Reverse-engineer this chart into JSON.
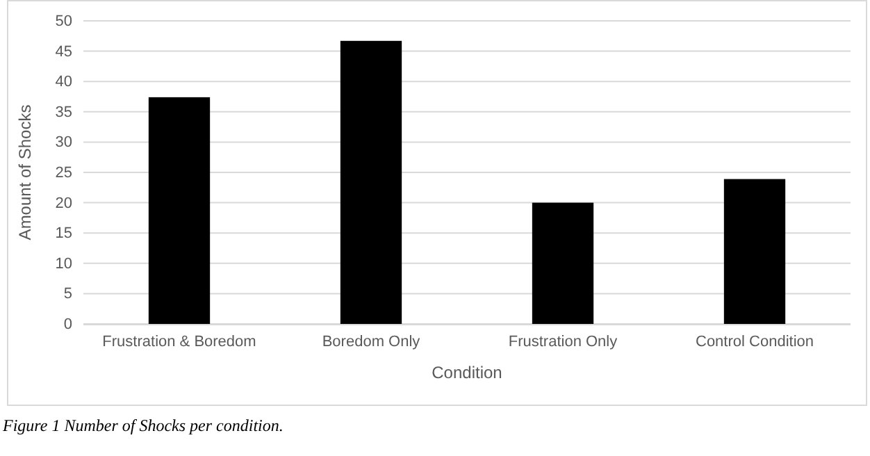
{
  "chart_data": {
    "type": "bar",
    "categories": [
      "Frustration & Boredom",
      "Boredom Only",
      "Frustration Only",
      "Control Condition"
    ],
    "values": [
      37.4,
      46.7,
      20,
      23.9
    ],
    "color": "#000000",
    "xlabel": "Condition",
    "ylabel": "Amount of Shocks",
    "ylim": [
      0,
      50
    ],
    "yticks": [
      0,
      5,
      10,
      15,
      20,
      25,
      30,
      35,
      40,
      45,
      50
    ],
    "grid": "y",
    "annotations": [
      "Figure 1 Number of Shocks per condition."
    ]
  }
}
